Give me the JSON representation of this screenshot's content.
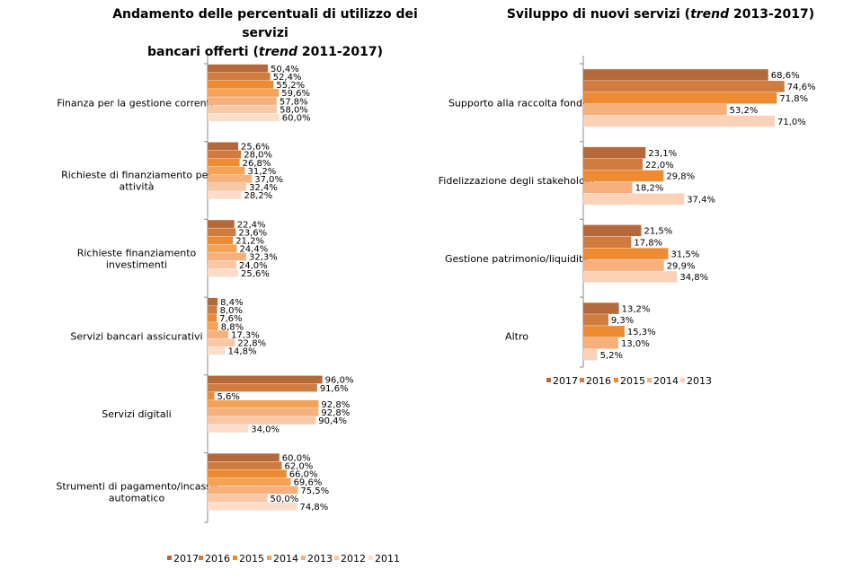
{
  "chart_data": [
    {
      "type": "bar",
      "orientation": "horizontal",
      "title": [
        "Andamento delle percentuali di utilizzo dei servizi",
        "bancari offerti (",
        "trend",
        " 2011-2017)"
      ],
      "categories": [
        "Finanza per la gestione corrente",
        "Richieste di finanziamento per attività",
        "Richieste finanziamento investimenti",
        "Servizi bancari assicurativi",
        "Servizi digitali",
        "Strumenti di pagamento/incasso automatico"
      ],
      "category_lines": [
        [
          "Finanza per la gestione corrente"
        ],
        [
          "Richieste di finanziamento per",
          "attività"
        ],
        [
          "Richieste finanziamento",
          "investimenti"
        ],
        [
          "Servizi bancari assicurativi"
        ],
        [
          "Servizi digitali"
        ],
        [
          "Strumenti di pagamento/incasso",
          "automatico"
        ]
      ],
      "series": [
        {
          "name": "2017",
          "color": "#b5693a",
          "values": [
            50.4,
            25.6,
            22.4,
            8.4,
            96.0,
            60.0
          ],
          "labels": [
            "50,4%",
            "25,6%",
            "22,4%",
            "8,4%",
            "96,0%",
            "60,0%"
          ]
        },
        {
          "name": "2016",
          "color": "#d07c3e",
          "values": [
            52.4,
            28.0,
            23.6,
            8.0,
            91.6,
            62.0
          ],
          "labels": [
            "52,4%",
            "28,0%",
            "23,6%",
            "8,0%",
            "91,6%",
            "62,0%"
          ]
        },
        {
          "name": "2015",
          "color": "#ee8a32",
          "values": [
            55.2,
            26.8,
            21.2,
            7.6,
            5.6,
            66.0
          ],
          "labels": [
            "55,2%",
            "26,8%",
            "21,2%",
            "7,6%",
            "5,6%",
            "66,0%"
          ]
        },
        {
          "name": "2014",
          "color": "#f6a254",
          "values": [
            59.6,
            31.2,
            24.4,
            8.8,
            92.8,
            69.6
          ],
          "labels": [
            "59,6%",
            "31,2%",
            "24,4%",
            "8,8%",
            "92,8%",
            "69,6%"
          ]
        },
        {
          "name": "2013",
          "color": "#f5b07c",
          "values": [
            57.8,
            37.0,
            32.3,
            17.3,
            92.8,
            75.5
          ],
          "labels": [
            "57,8%",
            "37,0%",
            "32,3%",
            "17,3%",
            "92,8%",
            "75,5%"
          ]
        },
        {
          "name": "2012",
          "color": "#f8c8a6",
          "values": [
            58.0,
            32.4,
            24.0,
            22.8,
            90.4,
            50.0
          ],
          "labels": [
            "58,0%",
            "32,4%",
            "24,0%",
            "22,8%",
            "90,4%",
            "50,0%"
          ]
        },
        {
          "name": "2011",
          "color": "#fbddc9",
          "values": [
            60.0,
            28.2,
            25.6,
            14.8,
            34.0,
            74.8
          ],
          "labels": [
            "60,0%",
            "28,2%",
            "25,6%",
            "14,8%",
            "34,0%",
            "74,8%"
          ]
        }
      ],
      "xlim": [
        0,
        100
      ],
      "legend": "bottom"
    },
    {
      "type": "bar",
      "orientation": "horizontal",
      "title": [
        "Sviluppo di nuovi servizi (",
        "trend",
        " 2013-2017)"
      ],
      "categories": [
        "Supporto alla raccolta fondi",
        "Fidelizzazione degli stakeholder",
        "Gestione patrimonio/liquidità",
        "Altro"
      ],
      "category_lines": [
        [
          "Supporto alla raccolta fondi"
        ],
        [
          "Fidelizzazione degli stakeholder"
        ],
        [
          "Gestione patrimonio/liquidità"
        ],
        [
          "Altro"
        ]
      ],
      "series": [
        {
          "name": "2017",
          "color": "#b5693a",
          "values": [
            68.6,
            23.1,
            21.5,
            13.2
          ],
          "labels": [
            "68,6%",
            "23,1%",
            "21,5%",
            "13,2%"
          ]
        },
        {
          "name": "2016",
          "color": "#d07c3e",
          "values": [
            74.6,
            22.0,
            17.8,
            9.3
          ],
          "labels": [
            "74,6%",
            "22,0%",
            "17,8%",
            "9,3%"
          ]
        },
        {
          "name": "2015",
          "color": "#ee8a32",
          "values": [
            71.8,
            29.8,
            31.5,
            15.3
          ],
          "labels": [
            "71,8%",
            "29,8%",
            "31,5%",
            "15,3%"
          ]
        },
        {
          "name": "2014",
          "color": "#f5b07c",
          "values": [
            53.2,
            18.2,
            29.9,
            13.0
          ],
          "labels": [
            "53,2%",
            "18,2%",
            "29,9%",
            "13,0%"
          ]
        },
        {
          "name": "2013",
          "color": "#fbd2b8",
          "values": [
            71.0,
            37.4,
            34.8,
            5.2
          ],
          "labels": [
            "71,0%",
            "37,4%",
            "34,8%",
            "5,2%"
          ]
        }
      ],
      "xlim": [
        0,
        100
      ],
      "legend": "bottom"
    }
  ]
}
